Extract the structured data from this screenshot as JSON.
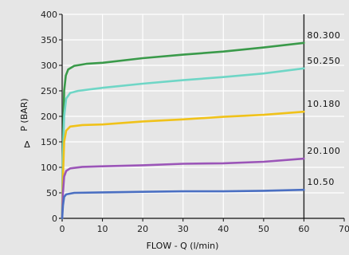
{
  "chart_data": {
    "type": "line",
    "xlabel": "FLOW - Q (l/min)",
    "ylabel": "P (BAR)",
    "ylabel_prefix": "Δ",
    "xlim": [
      0,
      70
    ],
    "ylim": [
      0,
      400
    ],
    "xticks": [
      0,
      10,
      20,
      30,
      40,
      50,
      60,
      70
    ],
    "yticks": [
      0,
      50,
      100,
      150,
      200,
      250,
      300,
      350,
      400
    ],
    "grid": true,
    "background": "#e6e6e6",
    "series": [
      {
        "name": "80.300",
        "color": "#3a9a4a",
        "points": [
          [
            0,
            0
          ],
          [
            0.2,
            140
          ],
          [
            0.5,
            250
          ],
          [
            0.9,
            280
          ],
          [
            1.5,
            292
          ],
          [
            3,
            299
          ],
          [
            6,
            303
          ],
          [
            10,
            305
          ],
          [
            20,
            314
          ],
          [
            30,
            321
          ],
          [
            40,
            327
          ],
          [
            50,
            335
          ],
          [
            60,
            344
          ]
        ]
      },
      {
        "name": "50.250",
        "color": "#6fd6c6",
        "points": [
          [
            0,
            0
          ],
          [
            0.2,
            120
          ],
          [
            0.5,
            200
          ],
          [
            1,
            235
          ],
          [
            2,
            246
          ],
          [
            4,
            250
          ],
          [
            8,
            254
          ],
          [
            10,
            256
          ],
          [
            20,
            264
          ],
          [
            30,
            271
          ],
          [
            40,
            277
          ],
          [
            50,
            284
          ],
          [
            60,
            294
          ]
        ]
      },
      {
        "name": "10.180",
        "color": "#f0c21a",
        "points": [
          [
            0,
            0
          ],
          [
            0.2,
            80
          ],
          [
            0.5,
            150
          ],
          [
            1,
            172
          ],
          [
            2,
            180
          ],
          [
            5,
            183
          ],
          [
            10,
            184
          ],
          [
            20,
            190
          ],
          [
            30,
            194
          ],
          [
            40,
            199
          ],
          [
            50,
            203
          ],
          [
            60,
            209
          ]
        ]
      },
      {
        "name": "20.100",
        "color": "#9b55b8",
        "points": [
          [
            0,
            0
          ],
          [
            0.2,
            50
          ],
          [
            0.5,
            82
          ],
          [
            1,
            93
          ],
          [
            2,
            98
          ],
          [
            5,
            101
          ],
          [
            10,
            102
          ],
          [
            20,
            104
          ],
          [
            30,
            107
          ],
          [
            40,
            108
          ],
          [
            50,
            111
          ],
          [
            60,
            117
          ]
        ]
      },
      {
        "name": "10.50",
        "color": "#4a6fc2",
        "points": [
          [
            0,
            0
          ],
          [
            0.2,
            25
          ],
          [
            0.5,
            42
          ],
          [
            1,
            47
          ],
          [
            3,
            50
          ],
          [
            10,
            51
          ],
          [
            20,
            52
          ],
          [
            30,
            53
          ],
          [
            40,
            53
          ],
          [
            50,
            54
          ],
          [
            60,
            56
          ]
        ]
      }
    ]
  }
}
